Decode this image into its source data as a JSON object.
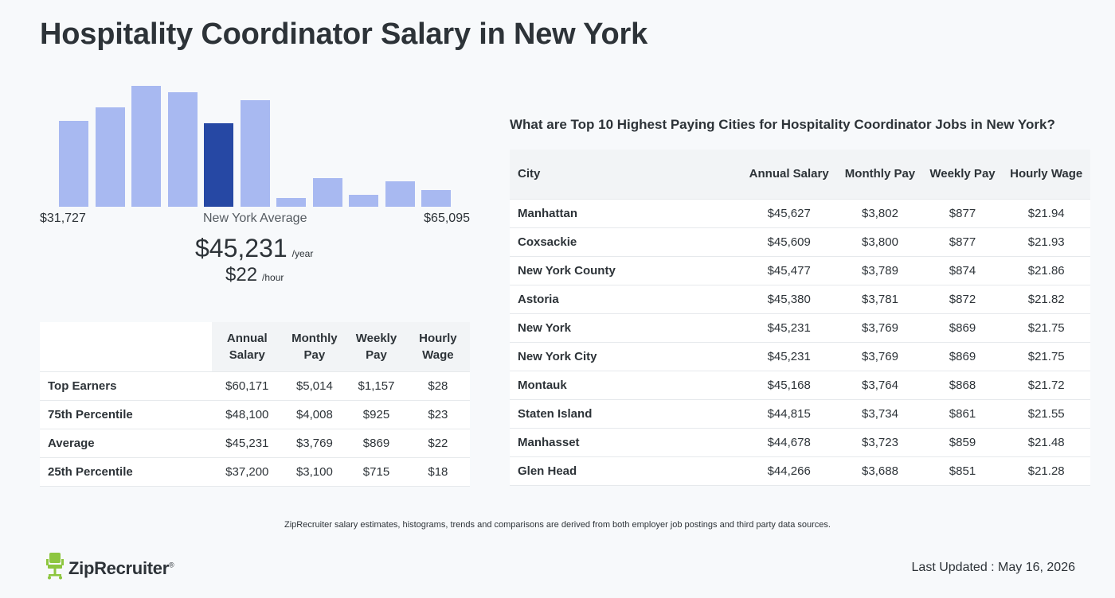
{
  "page": {
    "title": "Hospitality Coordinator Salary in New York"
  },
  "histogram": {
    "bars": [
      {
        "relative_height": 0.71,
        "highlighted": false
      },
      {
        "relative_height": 0.82,
        "highlighted": false
      },
      {
        "relative_height": 1.0,
        "highlighted": false
      },
      {
        "relative_height": 0.95,
        "highlighted": false
      },
      {
        "relative_height": 0.69,
        "highlighted": true
      },
      {
        "relative_height": 0.88,
        "highlighted": false
      },
      {
        "relative_height": 0.07,
        "highlighted": false
      },
      {
        "relative_height": 0.24,
        "highlighted": false
      },
      {
        "relative_height": 0.1,
        "highlighted": false
      },
      {
        "relative_height": 0.21,
        "highlighted": false
      },
      {
        "relative_height": 0.14,
        "highlighted": false
      }
    ],
    "min_label": "$31,727",
    "max_label": "$65,095",
    "middle_label": "New York Average",
    "bar_color": "#a8b9f1",
    "highlight_color": "#2648a4"
  },
  "average": {
    "yearly": "$45,231",
    "yearly_unit": "/year",
    "hourly": "$22",
    "hourly_unit": "/hour"
  },
  "percentile_table": {
    "headers": [
      "Annual Salary",
      "Monthly Pay",
      "Weekly Pay",
      "Hourly Wage"
    ],
    "rows": [
      {
        "label": "Top Earners",
        "values": [
          "$60,171",
          "$5,014",
          "$1,157",
          "$28"
        ]
      },
      {
        "label": "75th Percentile",
        "values": [
          "$48,100",
          "$4,008",
          "$925",
          "$23"
        ]
      },
      {
        "label": "Average",
        "values": [
          "$45,231",
          "$3,769",
          "$869",
          "$22"
        ]
      },
      {
        "label": "25th Percentile",
        "values": [
          "$37,200",
          "$3,100",
          "$715",
          "$18"
        ]
      }
    ]
  },
  "cities": {
    "heading": "What are Top 10 Highest Paying Cities for Hospitality Coordinator Jobs in New York?",
    "headers": [
      "City",
      "Annual Salary",
      "Monthly Pay",
      "Weekly Pay",
      "Hourly Wage"
    ],
    "rows": [
      {
        "city": "Manhattan",
        "values": [
          "$45,627",
          "$3,802",
          "$877",
          "$21.94"
        ]
      },
      {
        "city": "Coxsackie",
        "values": [
          "$45,609",
          "$3,800",
          "$877",
          "$21.93"
        ]
      },
      {
        "city": "New York County",
        "values": [
          "$45,477",
          "$3,789",
          "$874",
          "$21.86"
        ]
      },
      {
        "city": "Astoria",
        "values": [
          "$45,380",
          "$3,781",
          "$872",
          "$21.82"
        ]
      },
      {
        "city": "New York",
        "values": [
          "$45,231",
          "$3,769",
          "$869",
          "$21.75"
        ]
      },
      {
        "city": "New York City",
        "values": [
          "$45,231",
          "$3,769",
          "$869",
          "$21.75"
        ]
      },
      {
        "city": "Montauk",
        "values": [
          "$45,168",
          "$3,764",
          "$868",
          "$21.72"
        ]
      },
      {
        "city": "Staten Island",
        "values": [
          "$44,815",
          "$3,734",
          "$861",
          "$21.55"
        ]
      },
      {
        "city": "Manhasset",
        "values": [
          "$44,678",
          "$3,723",
          "$859",
          "$21.48"
        ]
      },
      {
        "city": "Glen Head",
        "values": [
          "$44,266",
          "$3,688",
          "$851",
          "$21.28"
        ]
      }
    ]
  },
  "footer": {
    "note": "ZipRecruiter salary estimates, histograms, trends and comparisons are derived from both employer job postings and third party data sources.",
    "logo_text": "ZipRecruiter",
    "logo_mark": "®",
    "logo_icon": "chair-icon",
    "logo_color": "#8dc63f",
    "updated": "Last Updated : May 16, 2026"
  }
}
